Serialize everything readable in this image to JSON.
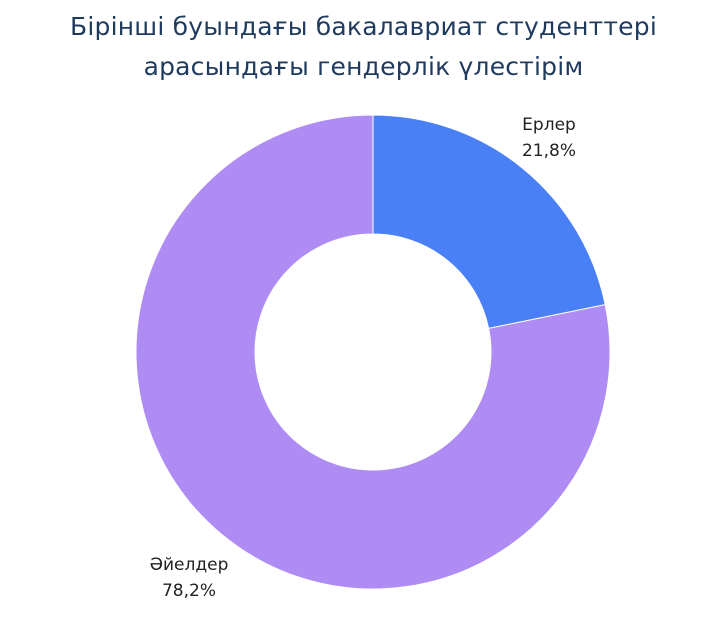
{
  "chart_data": {
    "type": "pie",
    "variant": "donut",
    "title_lines": [
      "Бірінші буындағы бакалавриат студенттері",
      "арасындағы гендерлік үлестірім"
    ],
    "slices": [
      {
        "label": "Ерлер",
        "value": 21.8,
        "value_text": "21,8%",
        "color": "#4a80f5"
      },
      {
        "label": "Әйелдер",
        "value": 78.2,
        "value_text": "78,2%",
        "color": "#ae8cf4"
      }
    ],
    "start": "top",
    "direction": "clockwise",
    "legend": "none"
  }
}
